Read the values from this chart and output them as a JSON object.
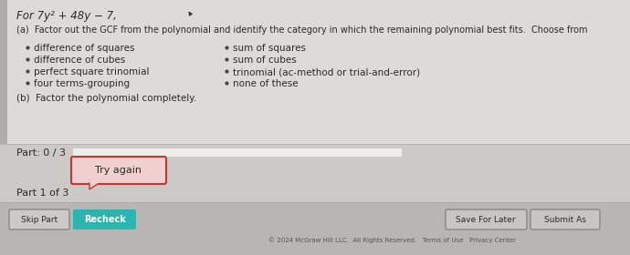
{
  "bg_color": "#c8c5c3",
  "content_bg": "#dedad8",
  "title_text": "For 7y² + 48y − 7,",
  "part_a_text": "(a)  Factor out the GCF from the polynomial and identify the category in which the remaining polynomial best fits.  Choose from",
  "left_bullets": [
    "difference of squares",
    "difference of cubes",
    "perfect square trinomial",
    "four terms-grouping"
  ],
  "right_bullets": [
    "sum of squares",
    "sum of cubes",
    "trinomial (ac-method or trial-and-error)",
    "none of these"
  ],
  "part_b_text": "(b)  Factor the polynomial completely.",
  "part_label": "Part: 0 / 3",
  "part1_label": "Part 1 of 3",
  "try_again_text": "Try again",
  "try_again_border": "#c0392b",
  "try_again_bg": "#f2d0d0",
  "skip_part_text": "Skip Part",
  "recheck_text": "Recheck",
  "recheck_color": "#2ab5b0",
  "save_later_text": "Save For Later",
  "submit_text": "Submit As",
  "footer_text": "© 2024 McGraw Hill LLC.  All Rights Reserved.   Terms of Use   Privacy Center",
  "divider_color": "#aaaaaa",
  "progress_bar_bg": "#e0dedd",
  "progress_bar_fill": "#c8c5c3",
  "part_section_bg": "#ccc9c7",
  "bottom_section_bg": "#b8b5b3",
  "text_color": "#2a2a2a",
  "bullet_color": "#444444",
  "cursor_color": "#333333"
}
